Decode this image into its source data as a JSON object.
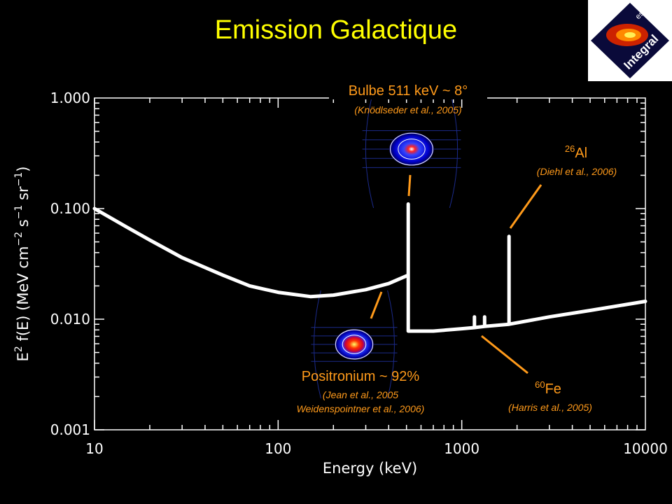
{
  "slide_title": "Emission Galactique",
  "logo": {
    "text": "Integral",
    "agency": "esa",
    "colors": {
      "bg": "#ffffff",
      "diamond": "#0a0a3a"
    }
  },
  "colors": {
    "title": "#ffff00",
    "annotation": "#ff9a1a",
    "axis": "#ffffff",
    "curve": "#ffffff"
  },
  "chart_data": {
    "type": "line",
    "xlabel": "Energy (keV)",
    "ylabel": "E2 f(E) (MeV cm-2 s-1 sr-1)",
    "x_scale": "log",
    "y_scale": "log",
    "xlim": [
      10,
      10000
    ],
    "ylim": [
      0.001,
      1.0
    ],
    "x_ticks": [
      10,
      100,
      1000,
      10000
    ],
    "x_tick_labels": [
      "10",
      "100",
      "1000",
      "10000"
    ],
    "y_ticks": [
      0.001,
      0.01,
      0.1,
      1.0
    ],
    "y_tick_labels": [
      "0.001",
      "0.010",
      "0.100",
      "1.000"
    ],
    "series": [
      {
        "values_xy": [
          [
            10,
            0.1
          ],
          [
            15,
            0.068
          ],
          [
            20,
            0.052
          ],
          [
            30,
            0.036
          ],
          [
            50,
            0.025
          ],
          [
            70,
            0.02
          ],
          [
            100,
            0.0175
          ],
          [
            150,
            0.016
          ],
          [
            200,
            0.0165
          ],
          [
            300,
            0.0185
          ],
          [
            400,
            0.021
          ],
          [
            511,
            0.025
          ],
          [
            511,
            0.11
          ],
          [
            511,
            0.0078
          ],
          [
            700,
            0.0078
          ],
          [
            1000,
            0.0082
          ],
          [
            1173,
            0.0084
          ],
          [
            1173,
            0.0105
          ],
          [
            1173,
            0.0084
          ],
          [
            1332,
            0.0086
          ],
          [
            1332,
            0.0105
          ],
          [
            1332,
            0.0086
          ],
          [
            1809,
            0.009
          ],
          [
            1809,
            0.056
          ],
          [
            1809,
            0.009
          ],
          [
            3000,
            0.0105
          ],
          [
            5000,
            0.012
          ],
          [
            10000,
            0.0145
          ]
        ]
      }
    ],
    "annotations": {
      "bulge": {
        "title": "Bulbe 511 keV ~ 8°",
        "ref": "(Knödlseder et al., 2005)"
      },
      "al26": {
        "sup": "26",
        "name": "Al",
        "ref": "(Diehl et al., 2006)"
      },
      "positronium": {
        "title": "Positronium ~ 92%",
        "ref1": "(Jean et al., 2005",
        "ref2": "Weidenspointner et al., 2006)"
      },
      "fe60": {
        "sup": "60",
        "name": "Fe",
        "ref": "(Harris et al., 2005)"
      }
    }
  }
}
